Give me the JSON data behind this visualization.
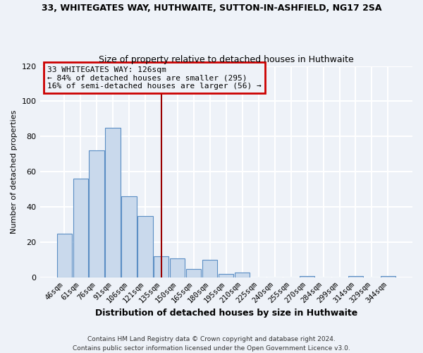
{
  "title": "33, WHITEGATES WAY, HUTHWAITE, SUTTON-IN-ASHFIELD, NG17 2SA",
  "subtitle": "Size of property relative to detached houses in Huthwaite",
  "xlabel": "Distribution of detached houses by size in Huthwaite",
  "ylabel": "Number of detached properties",
  "bin_labels": [
    "46sqm",
    "61sqm",
    "76sqm",
    "91sqm",
    "106sqm",
    "121sqm",
    "135sqm",
    "150sqm",
    "165sqm",
    "180sqm",
    "195sqm",
    "210sqm",
    "225sqm",
    "240sqm",
    "255sqm",
    "270sqm",
    "284sqm",
    "299sqm",
    "314sqm",
    "329sqm",
    "344sqm"
  ],
  "bar_heights": [
    25,
    56,
    72,
    85,
    46,
    35,
    12,
    11,
    5,
    10,
    2,
    3,
    0,
    0,
    0,
    1,
    0,
    0,
    1,
    0,
    1
  ],
  "bar_color": "#c9d9ec",
  "bar_edge_color": "#5b8ec4",
  "vline_x": 6.0,
  "vline_color": "#990000",
  "annotation_line1": "33 WHITEGATES WAY: 126sqm",
  "annotation_line2": "← 84% of detached houses are smaller (295)",
  "annotation_line3": "16% of semi-detached houses are larger (56) →",
  "annotation_box_color": "#cc0000",
  "ylim": [
    0,
    120
  ],
  "yticks": [
    0,
    20,
    40,
    60,
    80,
    100,
    120
  ],
  "footer1": "Contains HM Land Registry data © Crown copyright and database right 2024.",
  "footer2": "Contains public sector information licensed under the Open Government Licence v3.0.",
  "background_color": "#eef2f8",
  "grid_color": "#ffffff"
}
